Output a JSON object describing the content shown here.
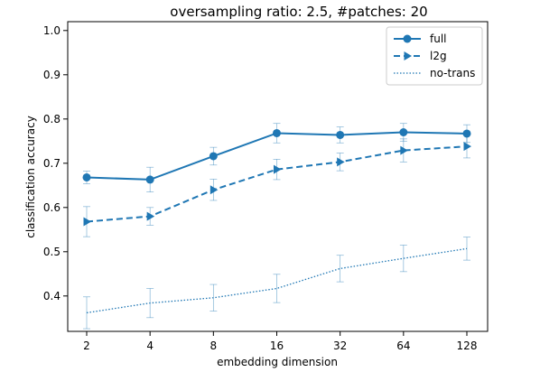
{
  "chart_data": {
    "type": "line",
    "title": "oversampling ratio: 2.5, #patches: 20",
    "xlabel": "embedding dimension",
    "ylabel": "classification accuracy",
    "categories": [
      "2",
      "4",
      "8",
      "16",
      "32",
      "64",
      "128"
    ],
    "ylim": [
      0.32,
      1.02
    ],
    "yticks": [
      "0.4",
      "0.5",
      "0.6",
      "0.7",
      "0.8",
      "0.9",
      "1.0"
    ],
    "grid": false,
    "legend_position": "top-right",
    "color": "#1f77b4",
    "series": [
      {
        "name": "full",
        "style": "solid-circle",
        "values": [
          0.668,
          0.663,
          0.716,
          0.768,
          0.764,
          0.77,
          0.767
        ],
        "err": [
          0.014,
          0.028,
          0.02,
          0.022,
          0.018,
          0.02,
          0.02
        ]
      },
      {
        "name": "l2g",
        "style": "dashed-triangle",
        "values": [
          0.568,
          0.58,
          0.64,
          0.686,
          0.703,
          0.729,
          0.738
        ],
        "err": [
          0.034,
          0.02,
          0.024,
          0.023,
          0.02,
          0.026,
          0.026
        ]
      },
      {
        "name": "no-trans",
        "style": "dotted",
        "values": [
          0.362,
          0.384,
          0.396,
          0.417,
          0.462,
          0.485,
          0.507
        ],
        "err": [
          0.036,
          0.033,
          0.03,
          0.032,
          0.03,
          0.03,
          0.026
        ]
      }
    ]
  }
}
